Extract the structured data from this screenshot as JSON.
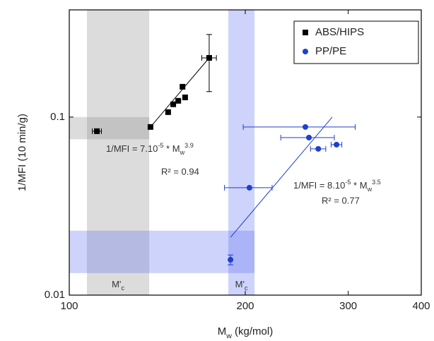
{
  "chart_data": {
    "type": "scatter",
    "x_label": {
      "main": "M",
      "sub": "w",
      "rest": " (kg/mol)"
    },
    "y_label": "1/MFI (10 min/g)",
    "log_x": true,
    "log_y": true,
    "xlim": [
      100,
      400
    ],
    "xticks": [
      100,
      200,
      300,
      400
    ],
    "ylim": [
      0.01,
      0.4
    ],
    "yticks": [
      0.01,
      0.1
    ],
    "legend": "upper right",
    "series": [
      {
        "name": "ABS/HIPS",
        "color": "#000000",
        "marker": "square",
        "x": [
          111.5,
          137.7,
          147.6,
          150.6,
          153.6,
          156.2,
          157.8,
          173.5
        ],
        "values": [
          0.0833,
          0.088,
          0.1066,
          0.118,
          0.1234,
          0.148,
          0.129,
          0.215
        ],
        "xerr": [
          2,
          null,
          null,
          null,
          null,
          null,
          null,
          5
        ],
        "yerr": [
          null,
          null,
          null,
          null,
          null,
          null,
          null,
          0.076
        ]
      },
      {
        "name": "PP/PE",
        "color": "#1f3fd0",
        "marker": "circle",
        "x": [
          253.4,
          257,
          266.6,
          286.5,
          203.3,
          188.7
        ],
        "values": [
          0.088,
          0.0767,
          0.0663,
          0.07,
          0.0401,
          0.0158
        ],
        "xerr": [
          55,
          27,
          8,
          6,
          19,
          null
        ],
        "yerr": [
          null,
          null,
          null,
          null,
          null,
          0.001
        ]
      }
    ],
    "fits": [
      {
        "color": "#000000",
        "x": [
          137.7,
          173.5
        ],
        "values": [
          0.088,
          0.215
        ],
        "label": {
          "lead": "1/MFI = 7.10",
          "exp": "-5",
          "mid": " * M",
          "sub": "w",
          "pow": "3.9"
        },
        "r2": "R² = 0.94"
      },
      {
        "color": "#1f3fd0",
        "x": [
          188.7,
          281.7
        ],
        "values": [
          0.0211,
          0.1
        ],
        "label": {
          "lead": "1/MFI = 8.10",
          "exp": "-5",
          "mid": " * M",
          "sub": "w",
          "pow": "3.5"
        },
        "r2": "R² = 0.77"
      }
    ],
    "bands": [
      {
        "color": "#8c8c8c",
        "xrange": [
          107.2,
          137
        ],
        "yrange": [
          0.01,
          0.4
        ],
        "label": {
          "main": "M'",
          "sub": "c"
        }
      },
      {
        "color": "#8c8c8c",
        "xrange": [
          100,
          137
        ],
        "yrange": [
          0.075,
          0.1
        ]
      },
      {
        "color": "#5a6cf0",
        "xrange": [
          187.1,
          207.4
        ],
        "yrange": [
          0.01,
          0.4
        ],
        "label": {
          "main": "M'",
          "sub": "c"
        }
      },
      {
        "color": "#5a6cf0",
        "xrange": [
          100,
          207.4
        ],
        "yrange": [
          0.0133,
          0.023
        ]
      }
    ]
  }
}
